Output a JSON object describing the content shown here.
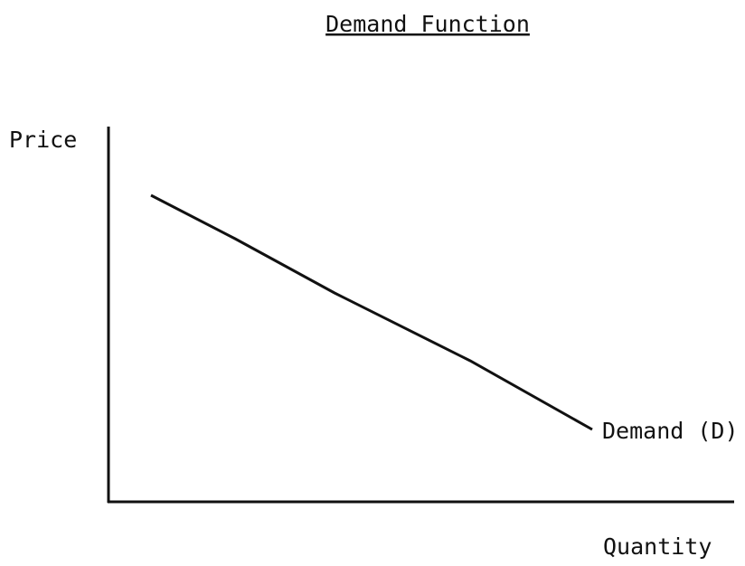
{
  "title": "Demand Function",
  "y_axis_label": "Price",
  "x_axis_label": "Quantity",
  "curve_label": "Demand (D)"
}
